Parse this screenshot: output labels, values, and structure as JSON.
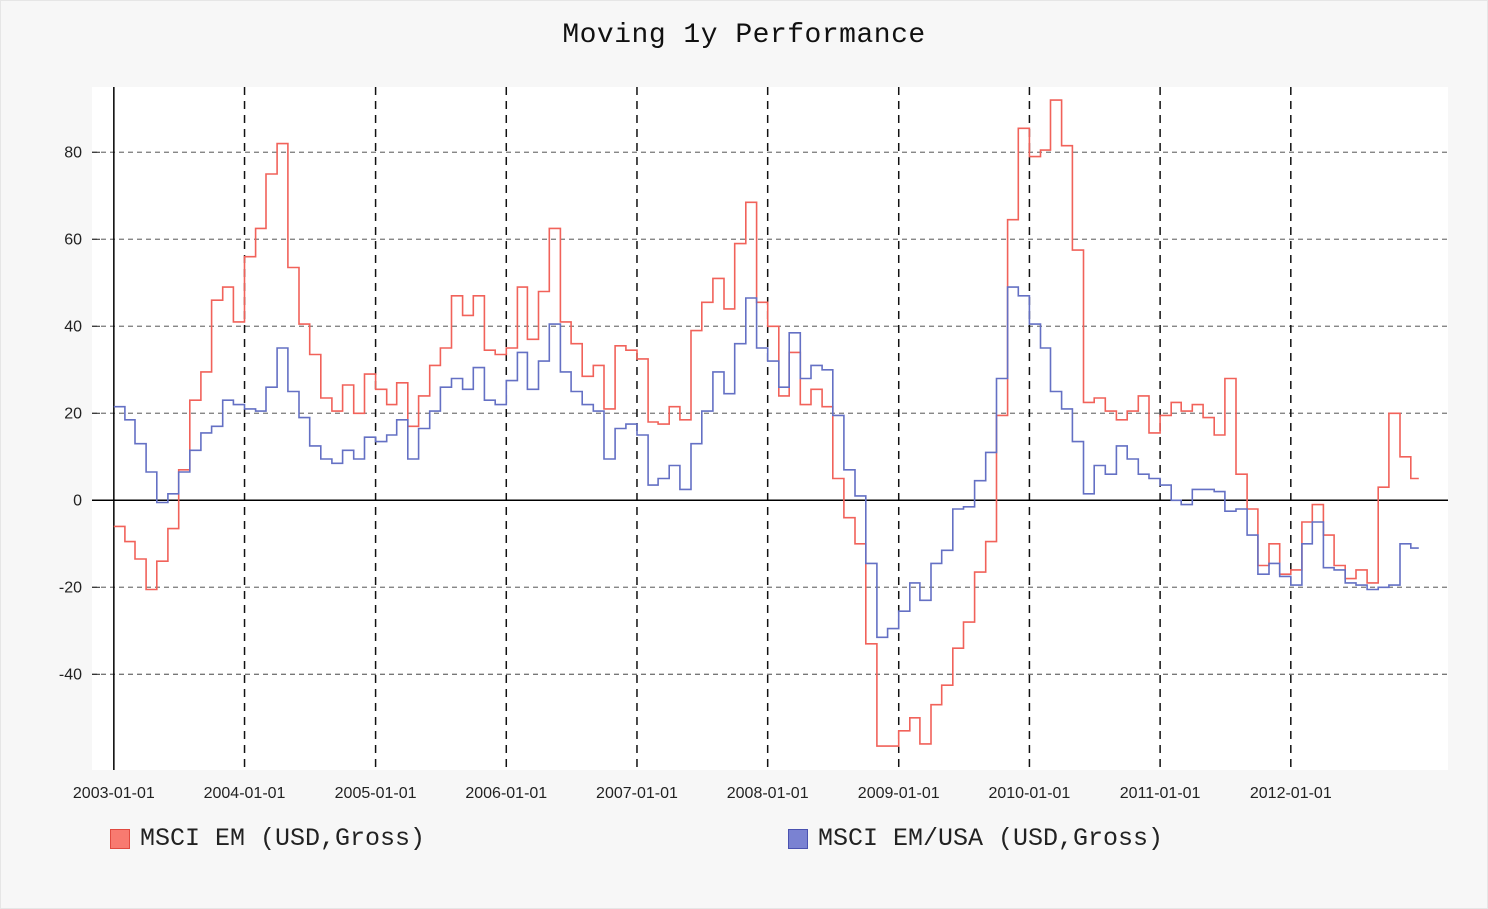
{
  "chart_data": {
    "type": "line",
    "title": "Moving 1y Performance",
    "xlabel": "",
    "ylabel": "",
    "x_ticks": [
      "2003-01-01",
      "2004-01-01",
      "2005-01-01",
      "2006-01-01",
      "2007-01-01",
      "2008-01-01",
      "2009-01-01",
      "2010-01-01",
      "2011-01-01",
      "2012-01-01"
    ],
    "y_ticks": [
      -40,
      -20,
      0,
      20,
      40,
      60,
      80
    ],
    "xlim": [
      "2002-11-01",
      "2013-03-15"
    ],
    "ylim": [
      -62,
      95
    ],
    "grid": true,
    "legend_position": "bottom",
    "series": [
      {
        "name": "MSCI EM (USD,Gross)",
        "color": "#f1625a",
        "points": [
          [
            "2003-01-01",
            -6
          ],
          [
            "2003-02-01",
            -9.5
          ],
          [
            "2003-03-01",
            -13.5
          ],
          [
            "2003-04-01",
            -20.5
          ],
          [
            "2003-05-01",
            -14
          ],
          [
            "2003-06-01",
            -6.5
          ],
          [
            "2003-07-01",
            7
          ],
          [
            "2003-08-01",
            23
          ],
          [
            "2003-09-01",
            29.5
          ],
          [
            "2003-10-01",
            46
          ],
          [
            "2003-11-01",
            49
          ],
          [
            "2003-12-01",
            41
          ],
          [
            "2004-01-01",
            56
          ],
          [
            "2004-02-01",
            62.5
          ],
          [
            "2004-03-01",
            75
          ],
          [
            "2004-04-01",
            82
          ],
          [
            "2004-05-01",
            53.5
          ],
          [
            "2004-06-01",
            40.5
          ],
          [
            "2004-07-01",
            33.5
          ],
          [
            "2004-08-01",
            23.5
          ],
          [
            "2004-09-01",
            20.5
          ],
          [
            "2004-10-01",
            26.5
          ],
          [
            "2004-11-01",
            20
          ],
          [
            "2004-12-01",
            29
          ],
          [
            "2005-01-01",
            25.5
          ],
          [
            "2005-02-01",
            22
          ],
          [
            "2005-03-01",
            27
          ],
          [
            "2005-04-01",
            17
          ],
          [
            "2005-05-01",
            24
          ],
          [
            "2005-06-01",
            31
          ],
          [
            "2005-07-01",
            35
          ],
          [
            "2005-08-01",
            47
          ],
          [
            "2005-09-01",
            42.5
          ],
          [
            "2005-10-01",
            47
          ],
          [
            "2005-11-01",
            34.5
          ],
          [
            "2005-12-01",
            33.5
          ],
          [
            "2006-01-01",
            35
          ],
          [
            "2006-02-01",
            49
          ],
          [
            "2006-03-01",
            37
          ],
          [
            "2006-04-01",
            48
          ],
          [
            "2006-05-01",
            62.5
          ],
          [
            "2006-06-01",
            41
          ],
          [
            "2006-07-01",
            36
          ],
          [
            "2006-08-01",
            28.5
          ],
          [
            "2006-09-01",
            31
          ],
          [
            "2006-10-01",
            21
          ],
          [
            "2006-11-01",
            35.5
          ],
          [
            "2006-12-01",
            34.5
          ],
          [
            "2007-01-01",
            32.5
          ],
          [
            "2007-02-01",
            18
          ],
          [
            "2007-03-01",
            17.5
          ],
          [
            "2007-04-01",
            21.5
          ],
          [
            "2007-05-01",
            18.5
          ],
          [
            "2007-06-01",
            39
          ],
          [
            "2007-07-01",
            45.5
          ],
          [
            "2007-08-01",
            51
          ],
          [
            "2007-09-01",
            44
          ],
          [
            "2007-10-01",
            59
          ],
          [
            "2007-11-01",
            68.5
          ],
          [
            "2007-12-01",
            45.5
          ],
          [
            "2008-01-01",
            40
          ],
          [
            "2008-02-01",
            24
          ],
          [
            "2008-03-01",
            34
          ],
          [
            "2008-04-01",
            22
          ],
          [
            "2008-05-01",
            25.5
          ],
          [
            "2008-06-01",
            21.5
          ],
          [
            "2008-07-01",
            5
          ],
          [
            "2008-08-01",
            -4
          ],
          [
            "2008-09-01",
            -10
          ],
          [
            "2008-10-01",
            -33
          ],
          [
            "2008-11-01",
            -56.5
          ],
          [
            "2008-12-01",
            -56.5
          ],
          [
            "2009-01-01",
            -53
          ],
          [
            "2009-02-01",
            -50
          ],
          [
            "2009-03-01",
            -56
          ],
          [
            "2009-04-01",
            -47
          ],
          [
            "2009-05-01",
            -42.5
          ],
          [
            "2009-06-01",
            -34
          ],
          [
            "2009-07-01",
            -28
          ],
          [
            "2009-08-01",
            -16.5
          ],
          [
            "2009-09-01",
            -9.5
          ],
          [
            "2009-10-01",
            19.5
          ],
          [
            "2009-11-01",
            64.5
          ],
          [
            "2009-12-01",
            85.5
          ],
          [
            "2010-01-01",
            79
          ],
          [
            "2010-02-01",
            80.5
          ],
          [
            "2010-03-01",
            92
          ],
          [
            "2010-04-01",
            81.5
          ],
          [
            "2010-05-01",
            57.5
          ],
          [
            "2010-06-01",
            22.5
          ],
          [
            "2010-07-01",
            23.5
          ],
          [
            "2010-08-01",
            20.5
          ],
          [
            "2010-09-01",
            18.5
          ],
          [
            "2010-10-01",
            20.5
          ],
          [
            "2010-11-01",
            24
          ],
          [
            "2010-12-01",
            15.5
          ],
          [
            "2011-01-01",
            19.5
          ],
          [
            "2011-02-01",
            22.5
          ],
          [
            "2011-03-01",
            20.5
          ],
          [
            "2011-04-01",
            22
          ],
          [
            "2011-05-01",
            19
          ],
          [
            "2011-06-01",
            15
          ],
          [
            "2011-07-01",
            28
          ],
          [
            "2011-08-01",
            6
          ],
          [
            "2011-09-01",
            -2
          ],
          [
            "2011-10-01",
            -15
          ],
          [
            "2011-11-01",
            -10
          ],
          [
            "2011-12-01",
            -17
          ],
          [
            "2012-01-01",
            -16
          ],
          [
            "2012-02-01",
            -5
          ],
          [
            "2012-03-01",
            -1
          ],
          [
            "2012-04-01",
            -8
          ],
          [
            "2012-05-01",
            -15
          ],
          [
            "2012-06-01",
            -18
          ],
          [
            "2012-07-01",
            -16
          ],
          [
            "2012-08-01",
            -19
          ],
          [
            "2012-09-01",
            3
          ],
          [
            "2012-10-01",
            20
          ],
          [
            "2012-11-01",
            10
          ],
          [
            "2012-12-01",
            5
          ]
        ]
      },
      {
        "name": "MSCI EM/USA (USD,Gross)",
        "color": "#6470c4",
        "points": [
          [
            "2003-01-01",
            21.5
          ],
          [
            "2003-02-01",
            18.5
          ],
          [
            "2003-03-01",
            13
          ],
          [
            "2003-04-01",
            6.5
          ],
          [
            "2003-05-01",
            -0.5
          ],
          [
            "2003-06-01",
            1.5
          ],
          [
            "2003-07-01",
            6.5
          ],
          [
            "2003-08-01",
            11.5
          ],
          [
            "2003-09-01",
            15.5
          ],
          [
            "2003-10-01",
            17
          ],
          [
            "2003-11-01",
            23
          ],
          [
            "2003-12-01",
            22
          ],
          [
            "2004-01-01",
            21
          ],
          [
            "2004-02-01",
            20.5
          ],
          [
            "2004-03-01",
            26
          ],
          [
            "2004-04-01",
            35
          ],
          [
            "2004-05-01",
            25
          ],
          [
            "2004-06-01",
            19
          ],
          [
            "2004-07-01",
            12.5
          ],
          [
            "2004-08-01",
            9.5
          ],
          [
            "2004-09-01",
            8.5
          ],
          [
            "2004-10-01",
            11.5
          ],
          [
            "2004-11-01",
            9.5
          ],
          [
            "2004-12-01",
            14.5
          ],
          [
            "2005-01-01",
            13.5
          ],
          [
            "2005-02-01",
            15
          ],
          [
            "2005-03-01",
            18.5
          ],
          [
            "2005-04-01",
            9.5
          ],
          [
            "2005-05-01",
            16.5
          ],
          [
            "2005-06-01",
            20.5
          ],
          [
            "2005-07-01",
            26
          ],
          [
            "2005-08-01",
            28
          ],
          [
            "2005-09-01",
            25.5
          ],
          [
            "2005-10-01",
            30.5
          ],
          [
            "2005-11-01",
            23
          ],
          [
            "2005-12-01",
            22
          ],
          [
            "2006-01-01",
            27.5
          ],
          [
            "2006-02-01",
            34
          ],
          [
            "2006-03-01",
            25.5
          ],
          [
            "2006-04-01",
            32
          ],
          [
            "2006-05-01",
            40.5
          ],
          [
            "2006-06-01",
            29.5
          ],
          [
            "2006-07-01",
            25
          ],
          [
            "2006-08-01",
            22
          ],
          [
            "2006-09-01",
            20.5
          ],
          [
            "2006-10-01",
            9.5
          ],
          [
            "2006-11-01",
            16.5
          ],
          [
            "2006-12-01",
            17.5
          ],
          [
            "2007-01-01",
            15
          ],
          [
            "2007-02-01",
            3.5
          ],
          [
            "2007-03-01",
            5
          ],
          [
            "2007-04-01",
            8
          ],
          [
            "2007-05-01",
            2.5
          ],
          [
            "2007-06-01",
            13
          ],
          [
            "2007-07-01",
            20.5
          ],
          [
            "2007-08-01",
            29.5
          ],
          [
            "2007-09-01",
            24.5
          ],
          [
            "2007-10-01",
            36
          ],
          [
            "2007-11-01",
            46.5
          ],
          [
            "2007-12-01",
            35
          ],
          [
            "2008-01-01",
            32
          ],
          [
            "2008-02-01",
            26
          ],
          [
            "2008-03-01",
            38.5
          ],
          [
            "2008-04-01",
            28
          ],
          [
            "2008-05-01",
            31
          ],
          [
            "2008-06-01",
            30
          ],
          [
            "2008-07-01",
            19.5
          ],
          [
            "2008-08-01",
            7
          ],
          [
            "2008-09-01",
            1
          ],
          [
            "2008-10-01",
            -14.5
          ],
          [
            "2008-11-01",
            -31.5
          ],
          [
            "2008-12-01",
            -29.5
          ],
          [
            "2009-01-01",
            -25.5
          ],
          [
            "2009-02-01",
            -19
          ],
          [
            "2009-03-01",
            -23
          ],
          [
            "2009-04-01",
            -14.5
          ],
          [
            "2009-05-01",
            -11.5
          ],
          [
            "2009-06-01",
            -2
          ],
          [
            "2009-07-01",
            -1.5
          ],
          [
            "2009-08-01",
            4.5
          ],
          [
            "2009-09-01",
            11
          ],
          [
            "2009-10-01",
            28
          ],
          [
            "2009-11-01",
            49
          ],
          [
            "2009-12-01",
            47
          ],
          [
            "2010-01-01",
            40.5
          ],
          [
            "2010-02-01",
            35
          ],
          [
            "2010-03-01",
            25
          ],
          [
            "2010-04-01",
            21
          ],
          [
            "2010-05-01",
            13.5
          ],
          [
            "2010-06-01",
            1.5
          ],
          [
            "2010-07-01",
            8
          ],
          [
            "2010-08-01",
            6
          ],
          [
            "2010-09-01",
            12.5
          ],
          [
            "2010-10-01",
            9.5
          ],
          [
            "2010-11-01",
            6
          ],
          [
            "2010-12-01",
            5
          ],
          [
            "2011-01-01",
            3.5
          ],
          [
            "2011-02-01",
            0
          ],
          [
            "2011-03-01",
            -1
          ],
          [
            "2011-04-01",
            2.5
          ],
          [
            "2011-05-01",
            2.5
          ],
          [
            "2011-06-01",
            2
          ],
          [
            "2011-07-01",
            -2.5
          ],
          [
            "2011-08-01",
            -2
          ],
          [
            "2011-09-01",
            -8
          ],
          [
            "2011-10-01",
            -17
          ],
          [
            "2011-11-01",
            -14.5
          ],
          [
            "2011-12-01",
            -17.5
          ],
          [
            "2012-01-01",
            -19.5
          ],
          [
            "2012-02-01",
            -10
          ],
          [
            "2012-03-01",
            -5
          ],
          [
            "2012-04-01",
            -15.5
          ],
          [
            "2012-05-01",
            -16
          ],
          [
            "2012-06-01",
            -19
          ],
          [
            "2012-07-01",
            -19.5
          ],
          [
            "2012-08-01",
            -20.5
          ],
          [
            "2012-09-01",
            -20
          ],
          [
            "2012-10-01",
            -19.5
          ],
          [
            "2012-11-01",
            -10
          ],
          [
            "2012-12-01",
            -11
          ]
        ]
      }
    ]
  }
}
